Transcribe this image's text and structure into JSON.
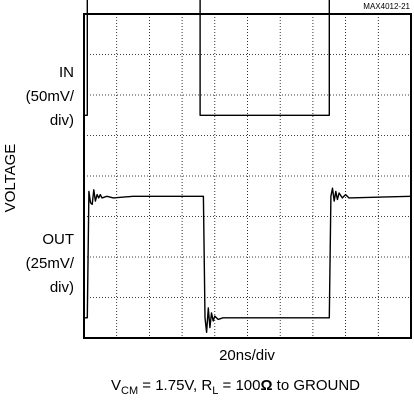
{
  "chart_data": {
    "type": "line",
    "figure_id": "MAX4012-21",
    "ylabel": "VOLTAGE",
    "xlabel": "20ns/div",
    "caption": {
      "vcm_main": "V",
      "vcm_sub": "CM",
      "vcm_rest": " = 1.75V, R",
      "rl_sub": "L",
      "rl_rest": " = 100",
      "omega": "Ω",
      "tail": " to GROUND"
    },
    "x_divisions": 10,
    "y_divisions": 8,
    "xlim": [
      0,
      200
    ],
    "grid": true,
    "series": [
      {
        "label_lines": [
          "IN",
          "(50mV/",
          "div)"
        ],
        "scale": "50mV/div",
        "points": [
          [
            0,
            0
          ],
          [
            2,
            0
          ],
          [
            2,
            150
          ],
          [
            71,
            150
          ],
          [
            71,
            0
          ],
          [
            150,
            0
          ],
          [
            150,
            150
          ],
          [
            200,
            150
          ]
        ]
      },
      {
        "label_lines": [
          "OUT",
          "(25mV/",
          "div)"
        ],
        "scale": "25mV/div",
        "points": [
          [
            0,
            0
          ],
          [
            2,
            0
          ],
          [
            3,
            78
          ],
          [
            4,
            71
          ],
          [
            5,
            70
          ],
          [
            6,
            79
          ],
          [
            7,
            72
          ],
          [
            8,
            76
          ],
          [
            9,
            74
          ],
          [
            10,
            76
          ],
          [
            11,
            74
          ],
          [
            14,
            75
          ],
          [
            18,
            74
          ],
          [
            30,
            75
          ],
          [
            50,
            75
          ],
          [
            70,
            75
          ],
          [
            73,
            75
          ],
          [
            74,
            0
          ],
          [
            75,
            -9
          ],
          [
            76,
            6
          ],
          [
            77,
            -6
          ],
          [
            78,
            3
          ],
          [
            79,
            -2
          ],
          [
            80,
            1
          ],
          [
            82,
            -1
          ],
          [
            85,
            0
          ],
          [
            150,
            0
          ],
          [
            151,
            75
          ],
          [
            152,
            80
          ],
          [
            153,
            72
          ],
          [
            154,
            78
          ],
          [
            155,
            73
          ],
          [
            156,
            77
          ],
          [
            158,
            74
          ],
          [
            160,
            76
          ],
          [
            162,
            74
          ],
          [
            200,
            75
          ]
        ]
      }
    ]
  }
}
